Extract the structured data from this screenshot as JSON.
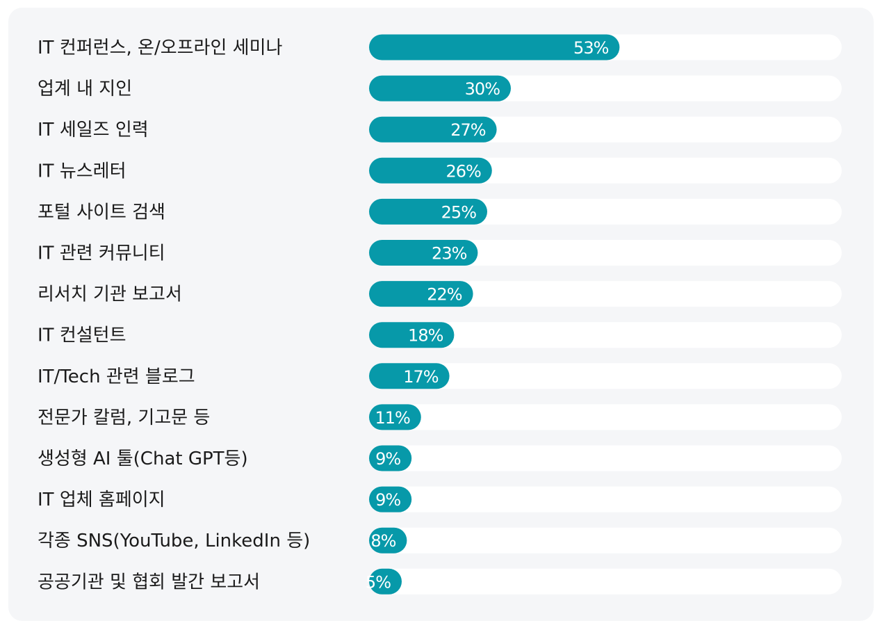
{
  "chart_data": {
    "type": "bar",
    "orientation": "horizontal",
    "title": "",
    "xlabel": "",
    "ylabel": "",
    "xlim": [
      0,
      100
    ],
    "unit": "%",
    "colors": {
      "bar": "#0799a9",
      "track": "#ffffff",
      "panel": "#f5f6f8",
      "label": "#1a1a1a",
      "value": "#ffffff"
    },
    "categories": [
      "IT 컨퍼런스, 온/오프라인 세미나",
      "업계 내 지인",
      "IT 세일즈 인력",
      "IT 뉴스레터",
      "포털 사이트 검색",
      "IT 관련 커뮤니티",
      "리서치 기관 보고서",
      "IT 컨설턴트",
      "IT/Tech 관련 블로그",
      "전문가 칼럼, 기고문 등",
      "생성형 AI 툴(Chat GPT등)",
      "IT 업체 홈페이지",
      "각종 SNS(YouTube, LinkedIn 등)",
      "공공기관 및 협회 발간 보고서"
    ],
    "values": [
      53,
      30,
      27,
      26,
      25,
      23,
      22,
      18,
      17,
      11,
      9,
      9,
      8,
      5
    ],
    "value_labels": [
      "53%",
      "30%",
      "27%",
      "26%",
      "25%",
      "23%",
      "22%",
      "18%",
      "17%",
      "11%",
      "9%",
      "9%",
      "8%",
      "5%"
    ]
  }
}
